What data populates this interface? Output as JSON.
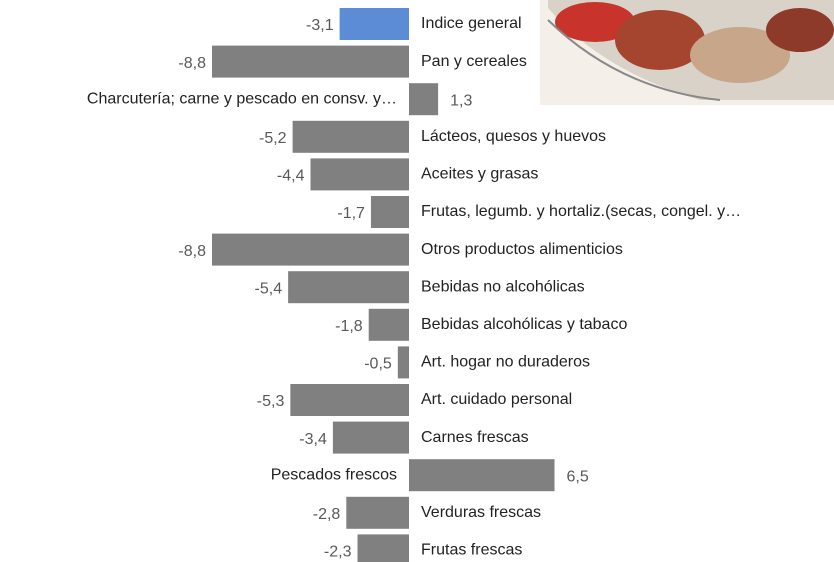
{
  "chart_data": {
    "type": "bar",
    "orientation": "horizontal",
    "categories": [
      "Indice general",
      "Pan y cereales",
      "Charcutería; carne y pescado en consv. y…",
      "Lácteos, quesos y huevos",
      "Aceites y grasas",
      "Frutas, legumb. y hortaliz.(secas, congel. y…",
      "Otros productos alimenticios",
      "Bebidas no alcohólicas",
      "Bebidas alcohólicas y tabaco",
      "Art. hogar no duraderos",
      "Art. cuidado personal",
      "Carnes frescas",
      "Pescados frescos",
      "Verduras frescas",
      "Frutas frescas"
    ],
    "values": [
      -3.1,
      -8.8,
      1.3,
      -5.2,
      -4.4,
      -1.7,
      -8.8,
      -5.4,
      -1.8,
      -0.5,
      -5.3,
      -3.4,
      6.5,
      -2.8,
      -2.3
    ],
    "value_labels": [
      "-3,1",
      "-8,8",
      "1,3",
      "-5,2",
      "-4,4",
      "-1,7",
      "-8,8",
      "-5,4",
      "-1,8",
      "-0,5",
      "-5,3",
      "-3,4",
      "6,5",
      "-2,8",
      "-2,3"
    ],
    "colors": [
      "#5b8cd5",
      "#808080",
      "#808080",
      "#808080",
      "#808080",
      "#808080",
      "#808080",
      "#808080",
      "#808080",
      "#808080",
      "#808080",
      "#808080",
      "#808080",
      "#808080",
      "#808080"
    ]
  }
}
